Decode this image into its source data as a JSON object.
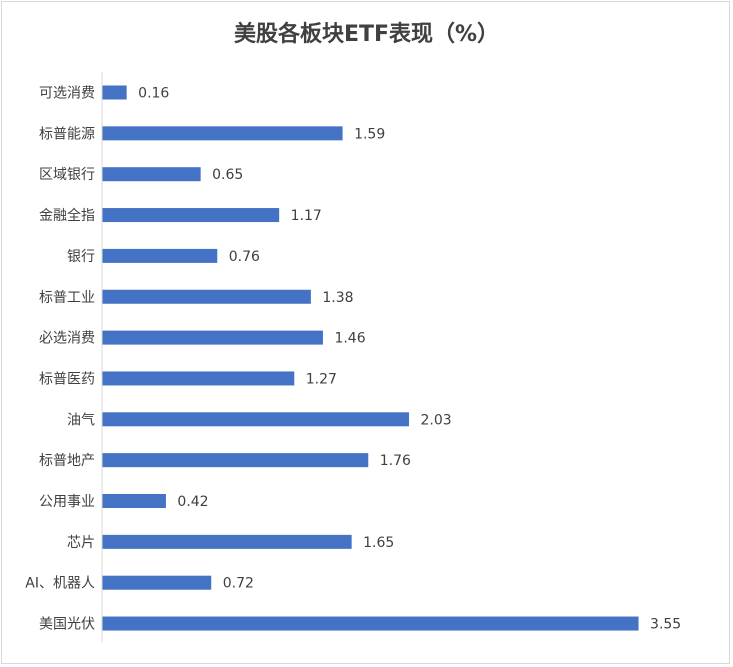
{
  "chart_data": {
    "type": "bar",
    "orientation": "horizontal",
    "title": "美股各板块ETF表现（%）",
    "categories": [
      "可选消费",
      "标普能源",
      "区域银行",
      "金融全指",
      "银行",
      "标普工业",
      "必选消费",
      "标普医药",
      "油气",
      "标普地产",
      "公用事业",
      "芯片",
      "AI、机器人",
      "美国光伏"
    ],
    "values": [
      0.16,
      1.59,
      0.65,
      1.17,
      0.76,
      1.38,
      1.46,
      1.27,
      2.03,
      1.76,
      0.42,
      1.65,
      0.72,
      3.55
    ],
    "data_labels": [
      "0.16",
      "1.59",
      "0.65",
      "1.17",
      "0.76",
      "1.38",
      "1.46",
      "1.27",
      "2.03",
      "1.76",
      "0.42",
      "1.65",
      "0.72",
      "3.55"
    ],
    "xlabel": "",
    "ylabel": "",
    "xlim": [
      0,
      3.6
    ],
    "grid": false,
    "legend": "none",
    "bar_color": "#4472c4"
  }
}
